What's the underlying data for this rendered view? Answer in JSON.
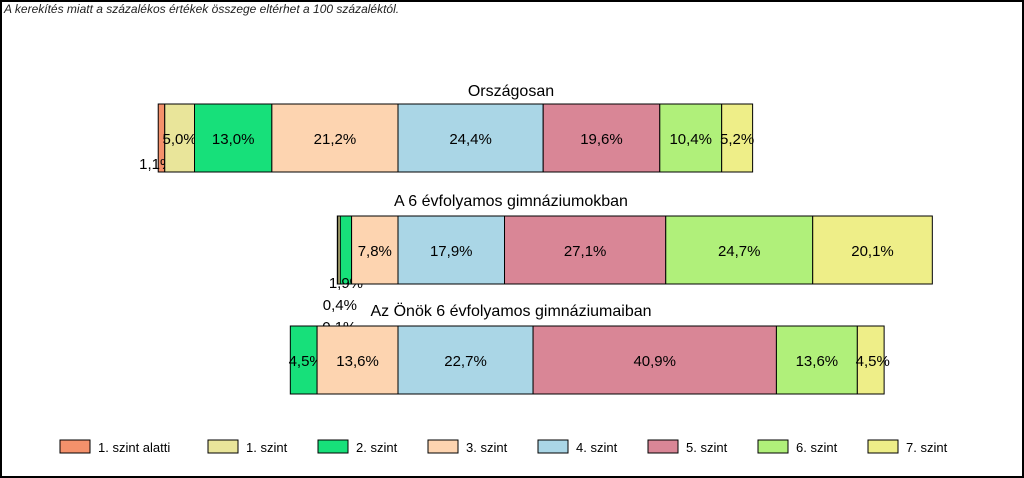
{
  "note": "A kerekítés miatt a  százalékos értékek összege eltérhet a 100 százaléktól.",
  "chart_data": {
    "type": "bar",
    "orientation": "horizontal-stacked",
    "categories": [
      "1. szint alatti",
      "1. szint",
      "2. szint",
      "3. szint",
      "4. szint",
      "5. szint",
      "6. szint",
      "7. szint"
    ],
    "colors": [
      "#f4916b",
      "#e9e59a",
      "#17e07a",
      "#fdd4b0",
      "#aad6e6",
      "#d98696",
      "#b0f07a",
      "#eeee88"
    ],
    "legend_position": "bottom",
    "groups": [
      {
        "title": "Országosan",
        "values": [
          1.1,
          5.0,
          13.0,
          21.2,
          24.4,
          19.6,
          10.4,
          5.2
        ],
        "labels": [
          "1,1%",
          "5,0%",
          "13,0%",
          "21,2%",
          "24,4%",
          "19,6%",
          "10,4%",
          "5,2%"
        ]
      },
      {
        "title": "A 6 évfolyamos gimnáziumokban",
        "values": [
          0.1,
          0.4,
          1.9,
          7.8,
          17.9,
          27.1,
          24.7,
          20.1
        ],
        "labels": [
          "0,1%",
          "0,4%",
          "1,9%",
          "7,8%",
          "17,9%",
          "27,1%",
          "24,7%",
          "20,1%"
        ]
      },
      {
        "title": "Az Önök 6 évfolyamos gimnáziumaiban",
        "values": [
          0.0,
          0.0,
          4.5,
          13.6,
          22.7,
          40.9,
          13.6,
          4.5
        ],
        "labels": [
          "",
          "",
          "4,5%",
          "13,6%",
          "22,7%",
          "40,9%",
          "13,6%",
          "4,5%"
        ]
      }
    ]
  }
}
